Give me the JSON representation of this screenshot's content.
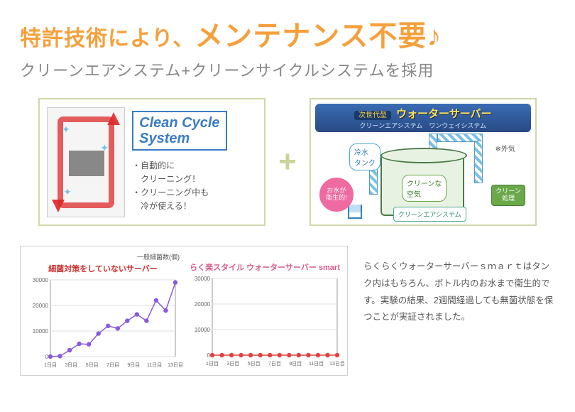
{
  "title_part1": "特許技術により、",
  "title_part2": "メンテナンス不要♪",
  "subtitle": "クリーンエアシステム+クリーンサイクルシステムを採用",
  "colors": {
    "accent": "#f5a03c",
    "border": "#cdd9aa",
    "plus": "#c8d49c",
    "blue": "#3a7cc4"
  },
  "clean_cycle": {
    "logo_line1": "Clean Cycle",
    "logo_line2": "System",
    "bullets": [
      "・自動的に\n　クリーニング！",
      "・クリーニング中も\n　冷が使える！"
    ]
  },
  "air_system": {
    "badge": "次世代型",
    "title": "ウォーターサーバー",
    "sub": "クリーンエアシステム　ワンウェイシステム",
    "labels": {
      "cold_tank": "冷水\nタンク",
      "hygienic": "お水が\n衛生的!",
      "clean_air": "クリーンな\n空気",
      "outside": "外気",
      "processor": "クリーン\n処理",
      "system_name": "クリーンエアシステム"
    }
  },
  "charts": {
    "legend": "一般細菌数(個)",
    "left": {
      "title": "細菌対策をしていないサーバー",
      "title_color": "#d03030",
      "x_labels": [
        "1日目",
        "3日目",
        "5日目",
        "7日目",
        "9日目",
        "11日目",
        "13日目"
      ],
      "y_ticks": [
        0,
        10000,
        20000,
        30000
      ],
      "ylim": [
        0,
        30000
      ],
      "values": [
        0,
        200,
        2500,
        5000,
        4800,
        9000,
        12000,
        11000,
        14000,
        16500,
        14000,
        22000,
        18000,
        29000
      ],
      "line_color": "#8a5adf",
      "marker_color": "#8a5adf",
      "grid_color": "#dedede",
      "background": "#ffffff"
    },
    "right": {
      "title": "らく楽スタイル ウォーターサーバー smart",
      "title_color": "#d85a8a",
      "x_labels": [
        "1日目",
        "3日目",
        "5日目",
        "7日目",
        "9日目",
        "11日目",
        "13日目"
      ],
      "y_ticks": [
        0,
        10000,
        20000,
        30000
      ],
      "ylim": [
        0,
        30000
      ],
      "values": [
        0,
        0,
        0,
        0,
        0,
        0,
        0,
        0,
        0,
        0,
        0,
        0,
        0,
        0
      ],
      "line_color": "#e04040",
      "marker_color": "#e04040",
      "grid_color": "#dedede",
      "background": "#ffffff"
    }
  },
  "description": "らくらくウォーターサーバーｓｍａｒｔはタンク内はもちろん、ボトル内のお水まで衛生的です。実験の結果、2週間経過しても無菌状態を保つことが実証されました。"
}
